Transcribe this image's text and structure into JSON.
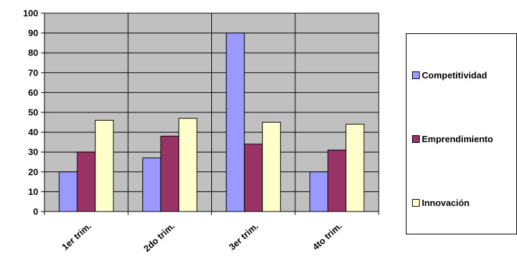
{
  "chart_data": {
    "type": "bar",
    "categories": [
      "1er trim.",
      "2do trim.",
      "3er trim.",
      "4to trim."
    ],
    "series": [
      {
        "name": "Competitividad",
        "values": [
          20,
          27,
          90,
          20
        ],
        "color": "#9999ff"
      },
      {
        "name": "Emprendimiento",
        "values": [
          30,
          38,
          34,
          31
        ],
        "color": "#993366"
      },
      {
        "name": "Innovación",
        "values": [
          46,
          47,
          45,
          44
        ],
        "color": "#ffffcc"
      }
    ],
    "ylim": [
      0,
      100
    ],
    "yticks": [
      "0",
      "10",
      "20",
      "30",
      "40",
      "50",
      "60",
      "70",
      "80",
      "90",
      "100"
    ],
    "grid": true,
    "plot_background": "#c0c0c0",
    "legend_position": "right"
  }
}
